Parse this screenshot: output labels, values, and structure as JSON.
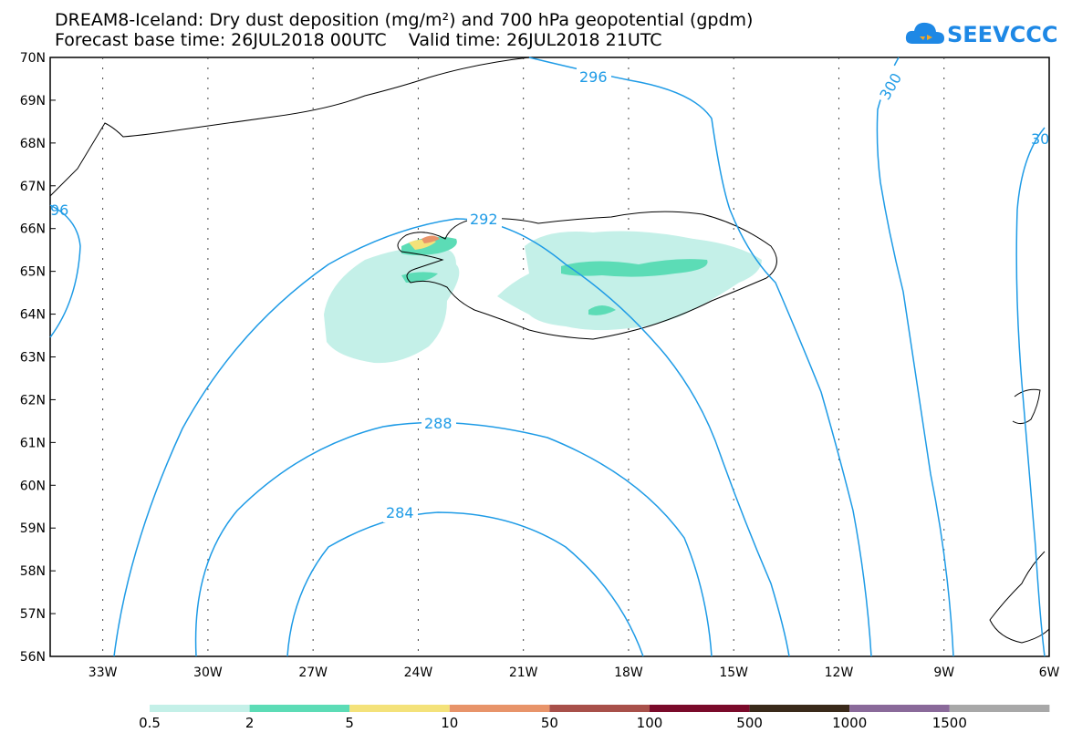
{
  "title": {
    "line1": "DREAM8-Iceland: Dry dust deposition (mg/m²) and 700 hPa geopotential (gpdm)",
    "line2": "Forecast base time: 26JUL2018 00UTC    Valid time: 26JUL2018 21UTC"
  },
  "logo": {
    "text": "SEEVCCC",
    "icon": "cloud-icon"
  },
  "map": {
    "lon_range": [
      -34.5,
      -6
    ],
    "lat_range": [
      56,
      70
    ],
    "lat_ticks": [
      "70N",
      "69N",
      "68N",
      "67N",
      "66N",
      "65N",
      "64N",
      "63N",
      "62N",
      "61N",
      "60N",
      "59N",
      "58N",
      "57N",
      "56N"
    ],
    "lon_ticks": [
      "33W",
      "30W",
      "27W",
      "24W",
      "21W",
      "18W",
      "15W",
      "12W",
      "9W",
      "6W"
    ],
    "grid": true,
    "contour_color": "#1e9be6",
    "contour_labels": [
      "296",
      "300",
      "30",
      "96",
      "292",
      "288",
      "284"
    ]
  },
  "legend": {
    "labels": [
      "0.5",
      "2",
      "5",
      "10",
      "50",
      "100",
      "500",
      "1000",
      "1500"
    ],
    "colors": [
      "#c4f0e8",
      "#5cdcb6",
      "#f4e27a",
      "#e8946a",
      "#a8504a",
      "#7a0a2a",
      "#3a2a1a",
      "#8a6a9a",
      "#a8a8a8"
    ]
  }
}
